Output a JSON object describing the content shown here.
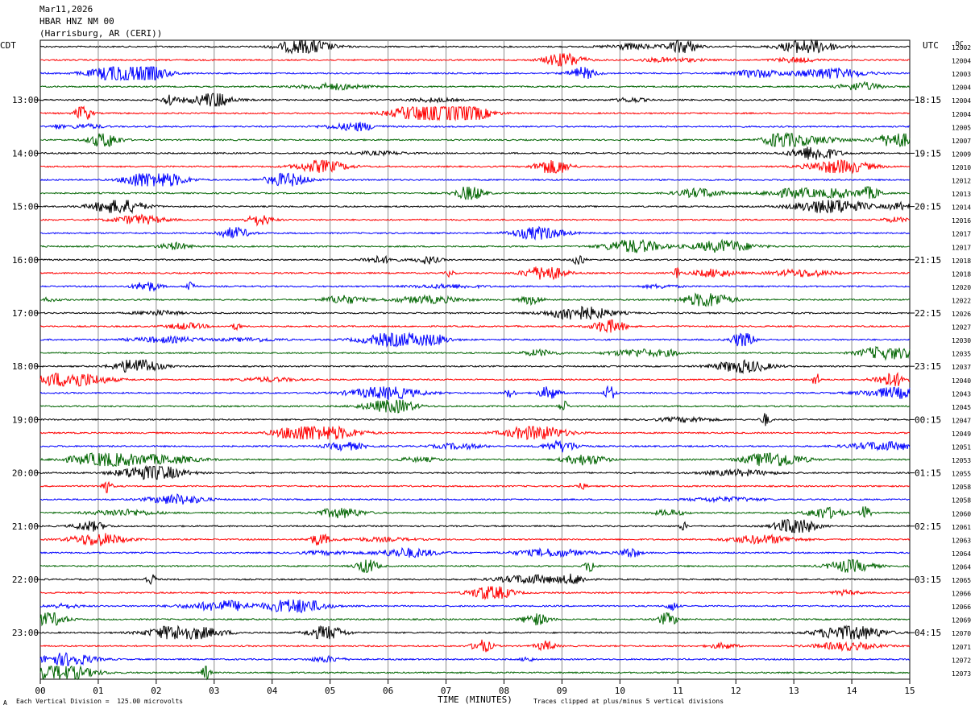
{
  "header": {
    "line1": "Mar11,2026",
    "line2": "HBAR HNZ NM 00",
    "line3": "(Harrisburg, AR (CERI))"
  },
  "left_zone": "CDT",
  "right_zone": "UTC",
  "dc_label": "DC",
  "footer": {
    "scale_note": "Each Vertical Division =  125.00 microvolts",
    "clip_note": "Traces clipped at plus/minus 5 vertical divisions",
    "corner_mark": "A"
  },
  "chart_data": {
    "type": "line",
    "xlabel": "TIME (MINUTES)",
    "x_ticks": [
      "00",
      "01",
      "02",
      "03",
      "04",
      "05",
      "06",
      "07",
      "08",
      "09",
      "10",
      "11",
      "12",
      "13",
      "14",
      "15"
    ],
    "xlim": [
      0,
      15
    ],
    "grid": true,
    "left_time_labels": [
      "13:00",
      "14:00",
      "15:00",
      "16:00",
      "17:00",
      "18:00",
      "19:00",
      "20:00",
      "21:00",
      "22:00",
      "23:00"
    ],
    "right_time_labels": [
      "18:15",
      "19:15",
      "20:15",
      "21:15",
      "22:15",
      "23:15",
      "00:15",
      "01:15",
      "02:15",
      "03:15",
      "04:15"
    ],
    "trace_colors": [
      "#000000",
      "#ff0000",
      "#0000ff",
      "#006400"
    ],
    "dc_offsets": [
      "12002",
      "12004",
      "12003",
      "12004",
      "12004",
      "12004",
      "12005",
      "12007",
      "12009",
      "12010",
      "12012",
      "12013",
      "12014",
      "12016",
      "12017",
      "12017",
      "12018",
      "12018",
      "12020",
      "12022",
      "12026",
      "12027",
      "12030",
      "12035",
      "12037",
      "12040",
      "12043",
      "12045",
      "12047",
      "12049",
      "12051",
      "12053",
      "12055",
      "12058",
      "12058",
      "12060",
      "12061",
      "12063",
      "12064",
      "12064",
      "12065",
      "12066",
      "12066",
      "12069",
      "12070",
      "12071",
      "12072",
      "12073"
    ]
  }
}
